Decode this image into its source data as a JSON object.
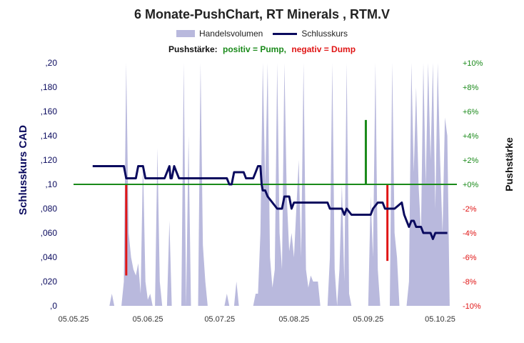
{
  "chart_data": {
    "type": "line",
    "title": "6 Monate-PushChart,  RT Minerals , RTM.V",
    "legend": {
      "volume_label": "Handelsvolumen",
      "close_label": "Schlusskurs"
    },
    "subtitle": {
      "prefix": "Pushstärke:",
      "positive": "positiv = Pump,",
      "negative": "negativ = Dump"
    },
    "ylabel_left": "Schlusskurs CAD",
    "ylabel_right": "Pushstärke",
    "ylim_left": [
      0,
      0.2
    ],
    "ylim_right": [
      -10,
      10
    ],
    "yticks_left": [
      ",0",
      ",020",
      ",040",
      ",060",
      ",080",
      ",10",
      ",120",
      ",140",
      ",160",
      ",180",
      ",20"
    ],
    "yticks_right": [
      "-10%",
      "-8%",
      "-6%",
      "-4%",
      "-2%",
      "+0%",
      "+2%",
      "+4%",
      "+6%",
      "+8%",
      "+10%"
    ],
    "x_range_days": [
      0,
      160
    ],
    "x_ticks": [
      {
        "day": 0,
        "label": "05.05.25"
      },
      {
        "day": 31,
        "label": "05.06.25"
      },
      {
        "day": 61,
        "label": "05.07.25"
      },
      {
        "day": 92,
        "label": "05.08.25"
      },
      {
        "day": 123,
        "label": "05.09.25"
      },
      {
        "day": 153,
        "label": "05.10.25"
      }
    ],
    "colors": {
      "volume": "#b9b9dd",
      "close": "#0a0a5e",
      "pump": "#1a8a1a",
      "dump": "#e01515",
      "zero_line": "#1a8a1a"
    },
    "close_series": [
      [
        8,
        0.115
      ],
      [
        21,
        0.115
      ],
      [
        22,
        0.105
      ],
      [
        26,
        0.105
      ],
      [
        27,
        0.115
      ],
      [
        29,
        0.115
      ],
      [
        30,
        0.105
      ],
      [
        38,
        0.105
      ],
      [
        39,
        0.11
      ],
      [
        40,
        0.115
      ],
      [
        40.5,
        0.105
      ],
      [
        41,
        0.105
      ],
      [
        42,
        0.115
      ],
      [
        43,
        0.11
      ],
      [
        44,
        0.105
      ],
      [
        64,
        0.105
      ],
      [
        65,
        0.1
      ],
      [
        66,
        0.1
      ],
      [
        67,
        0.11
      ],
      [
        71,
        0.11
      ],
      [
        72,
        0.105
      ],
      [
        75,
        0.105
      ],
      [
        76,
        0.11
      ],
      [
        77,
        0.115
      ],
      [
        78,
        0.115
      ],
      [
        78.5,
        0.1
      ],
      [
        79,
        0.095
      ],
      [
        80,
        0.095
      ],
      [
        81,
        0.09
      ],
      [
        83,
        0.085
      ],
      [
        85,
        0.08
      ],
      [
        87,
        0.08
      ],
      [
        88,
        0.09
      ],
      [
        90,
        0.09
      ],
      [
        91,
        0.08
      ],
      [
        92,
        0.085
      ],
      [
        106,
        0.085
      ],
      [
        107,
        0.08
      ],
      [
        112,
        0.08
      ],
      [
        113,
        0.075
      ],
      [
        114,
        0.08
      ],
      [
        116,
        0.075
      ],
      [
        124,
        0.075
      ],
      [
        125,
        0.08
      ],
      [
        127,
        0.085
      ],
      [
        129,
        0.085
      ],
      [
        130,
        0.08
      ],
      [
        134,
        0.08
      ],
      [
        137,
        0.085
      ],
      [
        138,
        0.075
      ],
      [
        139,
        0.07
      ],
      [
        140,
        0.065
      ],
      [
        141,
        0.07
      ],
      [
        142,
        0.07
      ],
      [
        143,
        0.065
      ],
      [
        145,
        0.065
      ],
      [
        146,
        0.06
      ],
      [
        149,
        0.06
      ],
      [
        150,
        0.055
      ],
      [
        151,
        0.06
      ],
      [
        156,
        0.06
      ]
    ],
    "volume_series": [
      [
        8,
        0
      ],
      [
        15,
        0
      ],
      [
        16,
        0.01
      ],
      [
        17,
        0
      ],
      [
        20,
        0
      ],
      [
        21,
        0.02
      ],
      [
        22,
        0.2
      ],
      [
        23,
        0.06
      ],
      [
        24,
        0.04
      ],
      [
        25,
        0.03
      ],
      [
        26,
        0.025
      ],
      [
        27,
        0.035
      ],
      [
        28,
        0.01
      ],
      [
        29,
        0.12
      ],
      [
        30,
        0.02
      ],
      [
        31,
        0.005
      ],
      [
        32,
        0.01
      ],
      [
        33,
        0
      ],
      [
        34,
        0
      ],
      [
        35,
        0.13
      ],
      [
        36,
        0.02
      ],
      [
        37,
        0
      ],
      [
        39,
        0
      ],
      [
        40,
        0.07
      ],
      [
        41,
        0
      ],
      [
        45,
        0
      ],
      [
        46,
        0.2
      ],
      [
        47,
        0
      ],
      [
        48,
        0.14
      ],
      [
        49,
        0
      ],
      [
        52,
        0
      ],
      [
        53,
        0.2
      ],
      [
        54,
        0.05
      ],
      [
        55,
        0.02
      ],
      [
        56,
        0
      ],
      [
        63,
        0
      ],
      [
        64,
        0.01
      ],
      [
        65,
        0
      ],
      [
        67,
        0
      ],
      [
        68,
        0.02
      ],
      [
        69,
        0
      ],
      [
        75,
        0
      ],
      [
        76,
        0.01
      ],
      [
        77,
        0.01
      ],
      [
        78,
        0.06
      ],
      [
        79,
        0.2
      ],
      [
        80,
        0.1
      ],
      [
        81,
        0.2
      ],
      [
        82,
        0.04
      ],
      [
        83,
        0.015
      ],
      [
        84,
        0.03
      ],
      [
        85,
        0.2
      ],
      [
        86,
        0.06
      ],
      [
        87,
        0.03
      ],
      [
        88,
        0.2
      ],
      [
        89,
        0.09
      ],
      [
        90,
        0.045
      ],
      [
        91,
        0.06
      ],
      [
        92,
        0.04
      ],
      [
        93,
        0.08
      ],
      [
        94,
        0.12
      ],
      [
        95,
        0.04
      ],
      [
        96,
        0.2
      ],
      [
        97,
        0.03
      ],
      [
        98,
        0.015
      ],
      [
        99,
        0.025
      ],
      [
        100,
        0.02
      ],
      [
        102,
        0.02
      ],
      [
        103,
        0
      ],
      [
        106,
        0
      ],
      [
        107,
        0.04
      ],
      [
        108,
        0.2
      ],
      [
        109,
        0.03
      ],
      [
        110,
        0
      ],
      [
        111,
        0.03
      ],
      [
        112,
        0.1
      ],
      [
        113,
        0.02
      ],
      [
        114,
        0.2
      ],
      [
        115,
        0.01
      ],
      [
        116,
        0
      ],
      [
        123,
        0
      ],
      [
        124,
        0.09
      ],
      [
        125,
        0.04
      ],
      [
        126,
        0.2
      ],
      [
        127,
        0.03
      ],
      [
        128,
        0
      ],
      [
        132,
        0
      ],
      [
        133,
        0.2
      ],
      [
        134,
        0.06
      ],
      [
        135,
        0.04
      ],
      [
        136,
        0
      ],
      [
        139,
        0
      ],
      [
        140,
        0.02
      ],
      [
        141,
        0.2
      ],
      [
        142,
        0.11
      ],
      [
        143,
        0.18
      ],
      [
        144,
        0.1
      ],
      [
        145,
        0.06
      ],
      [
        146,
        0.2
      ],
      [
        147,
        0.1
      ],
      [
        148,
        0.2
      ],
      [
        149,
        0.12
      ],
      [
        150,
        0.2
      ],
      [
        151,
        0.08
      ],
      [
        152,
        0.2
      ],
      [
        153,
        0.12
      ],
      [
        154,
        0.06
      ],
      [
        155,
        0.155
      ],
      [
        156,
        0.14
      ],
      [
        157,
        0
      ]
    ],
    "push_bars": [
      {
        "day": 22,
        "value": -7.5
      },
      {
        "day": 122,
        "value": 5.3
      },
      {
        "day": 131,
        "value": -6.3
      }
    ]
  }
}
